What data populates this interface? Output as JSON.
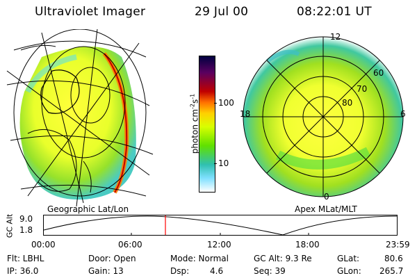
{
  "header": {
    "title": "Ultraviolet Imager",
    "date": "29 Jul 00",
    "time": "08:22:01 UT"
  },
  "left_panel": {
    "label": "Geographic Lat/Lon"
  },
  "right_panel": {
    "label": "Apex MLat/MLT",
    "mlt_labels": {
      "top": "12",
      "left": "18",
      "right": "6",
      "bottom": "0"
    },
    "lat_labels": [
      "60",
      "70",
      "80"
    ]
  },
  "colorbar": {
    "unit_label": "photon cm",
    "unit_sup1": "-2",
    "unit_mid": "s",
    "unit_sup2": "-1",
    "tick_labels": [
      "100",
      "10"
    ],
    "colors": [
      "#000040",
      "#5a0060",
      "#c00000",
      "#ff7000",
      "#ffd000",
      "#d8ff00",
      "#60e000",
      "#30c0b0",
      "#80e0ff",
      "#ffffff"
    ]
  },
  "altitude_strip": {
    "axis_label": "GC Alt",
    "y_ticks": [
      "9.0",
      "1.8"
    ],
    "x_ticks": [
      "00:00",
      "06:00",
      "12:00",
      "18:00",
      "23:59"
    ],
    "marker_time": "08:22",
    "marker_color": "#ff0000"
  },
  "status": {
    "filter": "Flt: LBHL",
    "ip": "IP: 36.0",
    "door": "Door: Open",
    "gain": "Gain: 13",
    "mode": "Mode: Normal",
    "dsp_label": "Dsp:",
    "dsp_value": "4.6",
    "gc_alt": "GC Alt: 9.3 Re",
    "seq": "Seq: 39",
    "glat_label": "GLat:",
    "glat_value": "80.6",
    "glon_label": "GLon:",
    "glon_value": "265.7"
  }
}
